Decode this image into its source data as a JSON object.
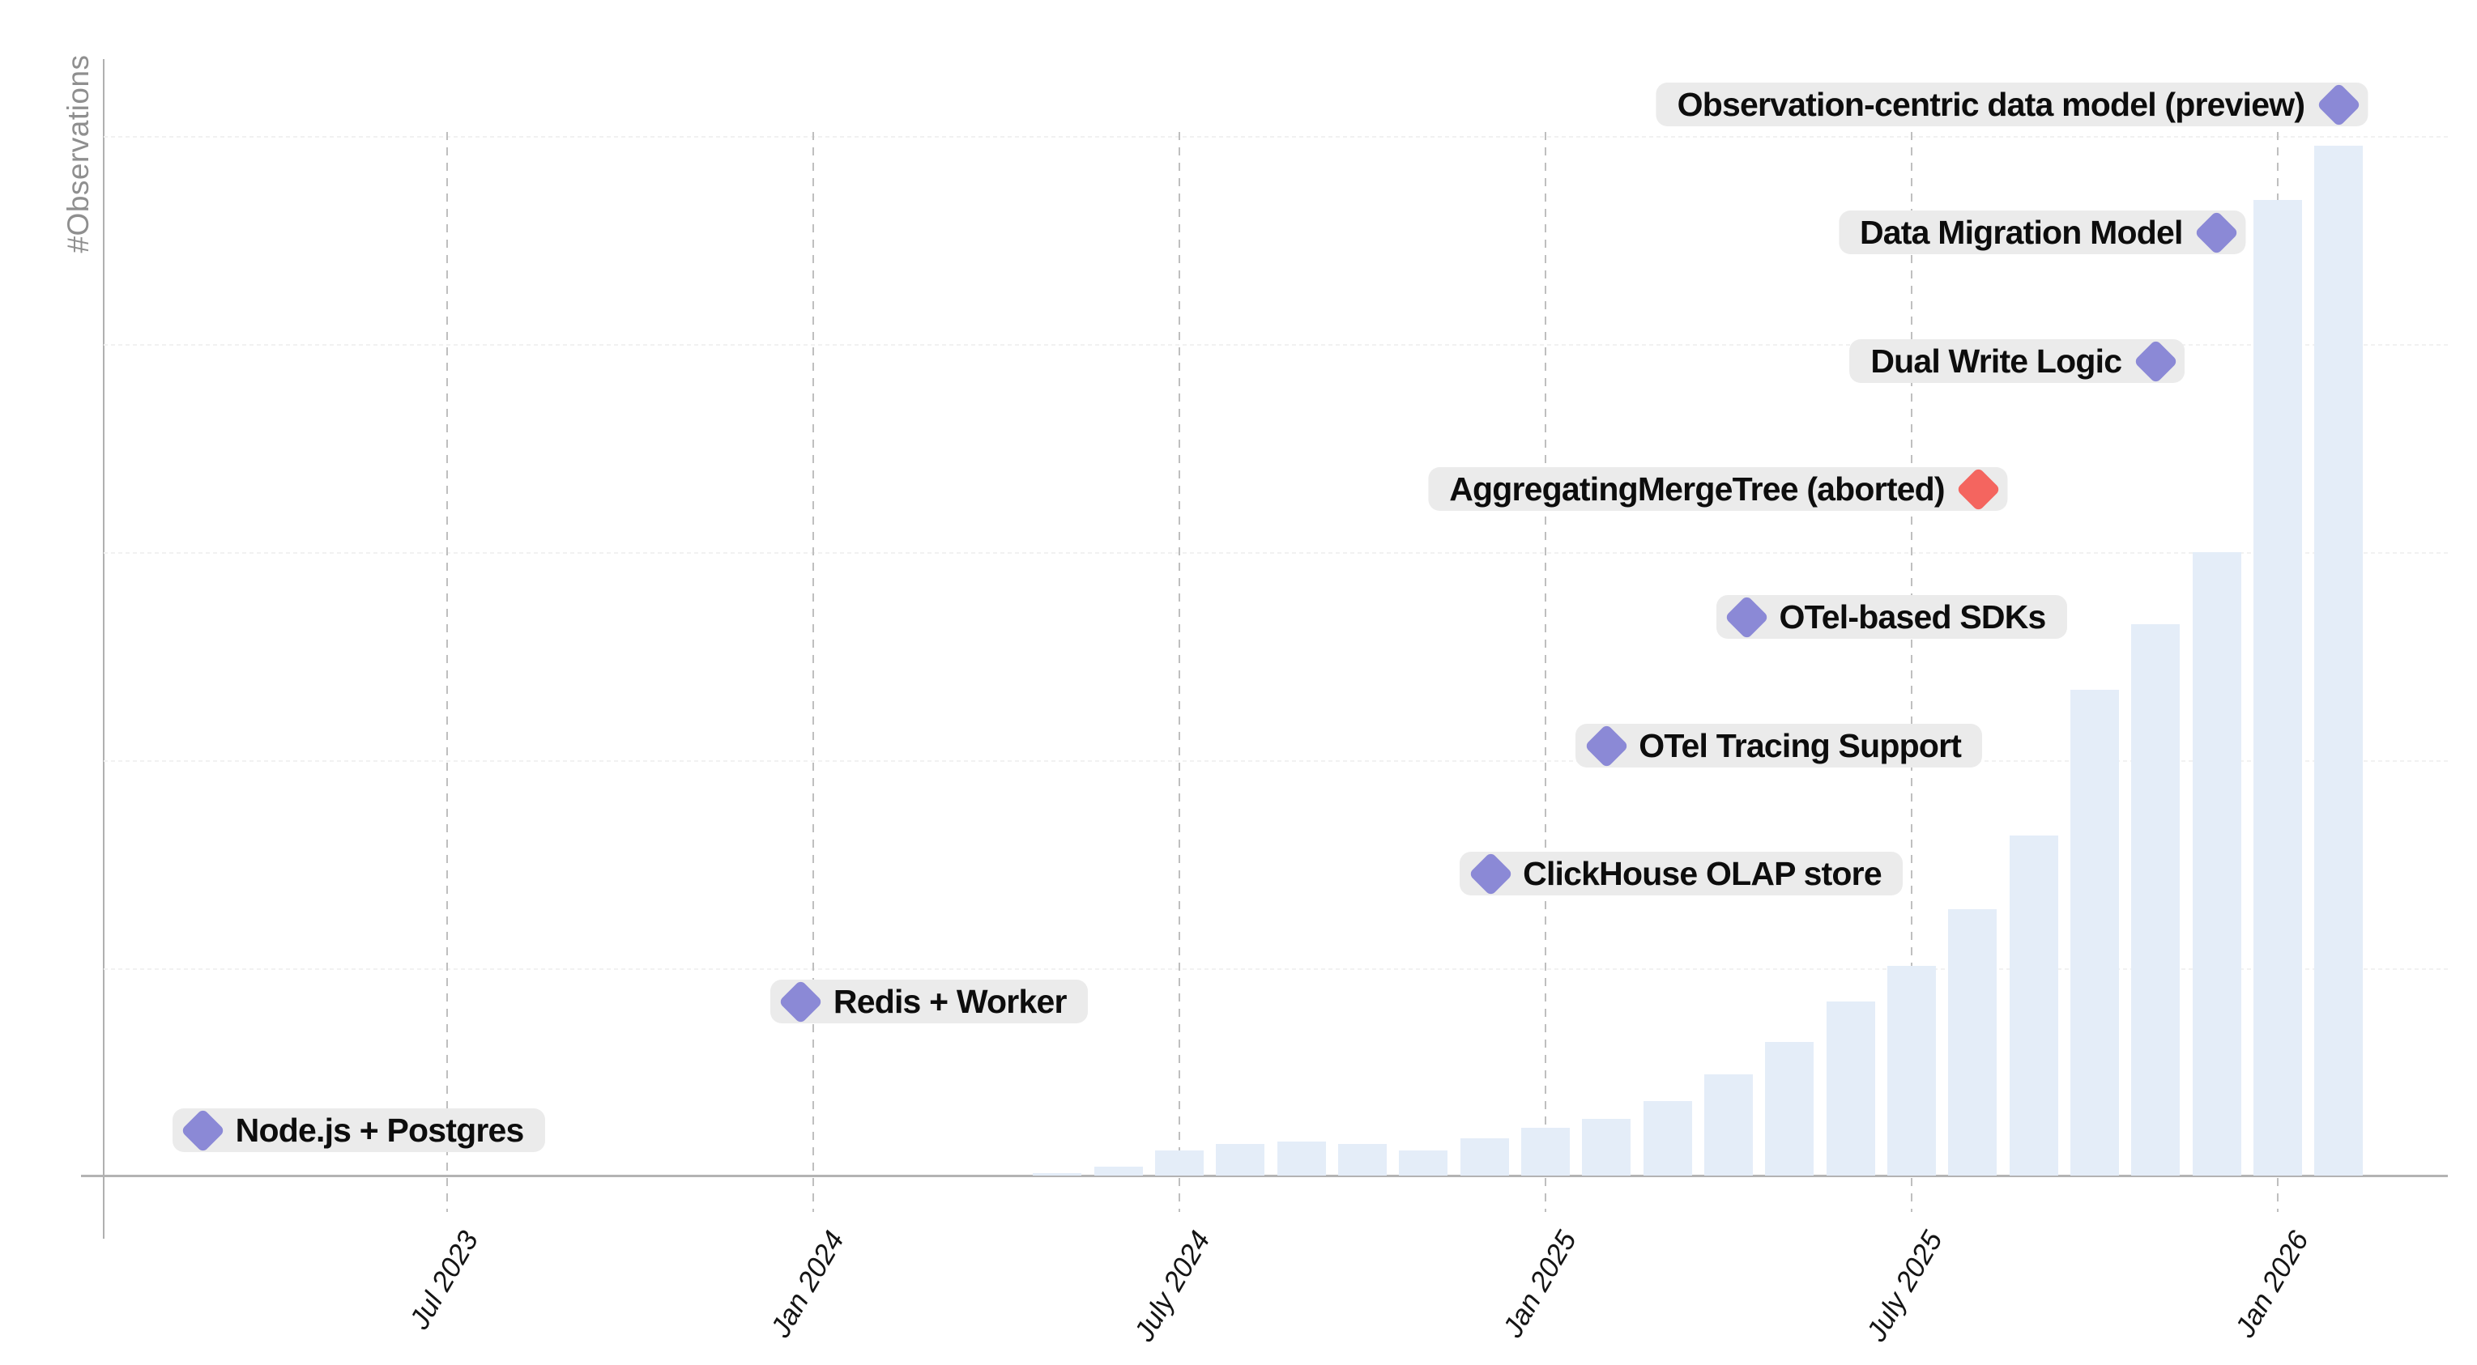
{
  "chart_data": {
    "type": "bar",
    "title": "",
    "ylabel": "#Observations",
    "xlabel": "",
    "legend": "none",
    "grid": {
      "vertical_dashed_gridlines": true,
      "horizontal_faint_gridlines": true,
      "x_tick_labels_rotated_italic": true
    },
    "x_tick_labels": [
      "Jul 2023",
      "Jan 2024",
      "July 2024",
      "Jan 2025",
      "July 2025",
      "Jan 2026"
    ],
    "x_tick_month_offsets_from_jul2023": [
      0,
      6,
      12,
      18,
      24,
      30
    ],
    "bars": {
      "unit": "monthly #Observations (no numeric y ticks shown; heights relative to tallest bar)",
      "months": [
        "May 2024",
        "Jun 2024",
        "Jul 2024",
        "Aug 2024",
        "Sep 2024",
        "Oct 2024",
        "Nov 2024",
        "Dec 2024",
        "Jan 2025",
        "Feb 2025",
        "Mar 2025",
        "Apr 2025",
        "May 2025",
        "Jun 2025",
        "Jul 2025",
        "Aug 2025",
        "Sep 2025",
        "Oct 2025",
        "Nov 2025",
        "Dec 2025",
        "Jan 2026",
        "Feb 2026"
      ],
      "month_offsets_from_jul2023": [
        10,
        11,
        12,
        13,
        14,
        15,
        16,
        17,
        18,
        19,
        20,
        21,
        22,
        23,
        24,
        25,
        26,
        27,
        28,
        29,
        30,
        31
      ],
      "relative_heights": [
        0.002,
        0.009,
        0.024,
        0.031,
        0.033,
        0.031,
        0.024,
        0.036,
        0.046,
        0.055,
        0.072,
        0.098,
        0.13,
        0.169,
        0.204,
        0.259,
        0.33,
        0.472,
        0.535,
        0.605,
        0.947,
        1.0
      ]
    },
    "milestones": [
      {
        "row": 1,
        "label": "Observation-centric data model (preview)",
        "date_approx": "Feb 2026",
        "month_offset_from_jul2023": 31.0,
        "text_side": "left",
        "marker": "diamond",
        "marker_color": "#8b89d6"
      },
      {
        "row": 2,
        "label": "Data Migration Model",
        "date_approx": "Dec 2025",
        "month_offset_from_jul2023": 29.0,
        "text_side": "left",
        "marker": "diamond",
        "marker_color": "#8b89d6"
      },
      {
        "row": 3,
        "label": "Dual Write Logic",
        "date_approx": "Nov 2025",
        "month_offset_from_jul2023": 28.0,
        "text_side": "left",
        "marker": "diamond",
        "marker_color": "#8b89d6"
      },
      {
        "row": 4,
        "label": "AggregatingMergeTree (aborted)",
        "date_approx": "Aug 2025",
        "month_offset_from_jul2023": 25.1,
        "text_side": "left",
        "marker": "diamond",
        "marker_color": "#f4655f"
      },
      {
        "row": 5,
        "label": "OTel-based SDKs",
        "date_approx": "Apr 2025",
        "month_offset_from_jul2023": 21.3,
        "text_side": "right",
        "marker": "diamond",
        "marker_color": "#8b89d6"
      },
      {
        "row": 6,
        "label": "OTel Tracing Support",
        "date_approx": "Feb 2025",
        "month_offset_from_jul2023": 19.0,
        "text_side": "right",
        "marker": "diamond",
        "marker_color": "#8b89d6"
      },
      {
        "row": 7,
        "label": "ClickHouse OLAP store",
        "date_approx": "Dec 2024",
        "month_offset_from_jul2023": 17.1,
        "text_side": "right",
        "marker": "diamond",
        "marker_color": "#8b89d6"
      },
      {
        "row": 8,
        "label": "Redis + Worker",
        "date_approx": "Jan 2024",
        "month_offset_from_jul2023": 5.8,
        "text_side": "right",
        "marker": "diamond",
        "marker_color": "#8b89d6"
      },
      {
        "row": 9,
        "label": "Node.js + Postgres",
        "date_approx": "Mar 2023",
        "month_offset_from_jul2023": -4.0,
        "text_side": "right",
        "marker": "diamond",
        "marker_color": "#8b89d6"
      }
    ],
    "colors": {
      "bar_fill": "#e4edf8",
      "milestone_pill_bg": "#ebebeb",
      "milestone_marker_purple": "#8b89d6",
      "milestone_marker_red": "#f4655f",
      "axis_line": "#b0b0b0",
      "vertical_gridline": "#bfbfbf",
      "horizontal_gridline": "#f1f1f1",
      "ylabel_text": "#8f8f8f",
      "tick_text": "#141414",
      "label_text": "#0d0d0d",
      "background": "#ffffff"
    }
  }
}
